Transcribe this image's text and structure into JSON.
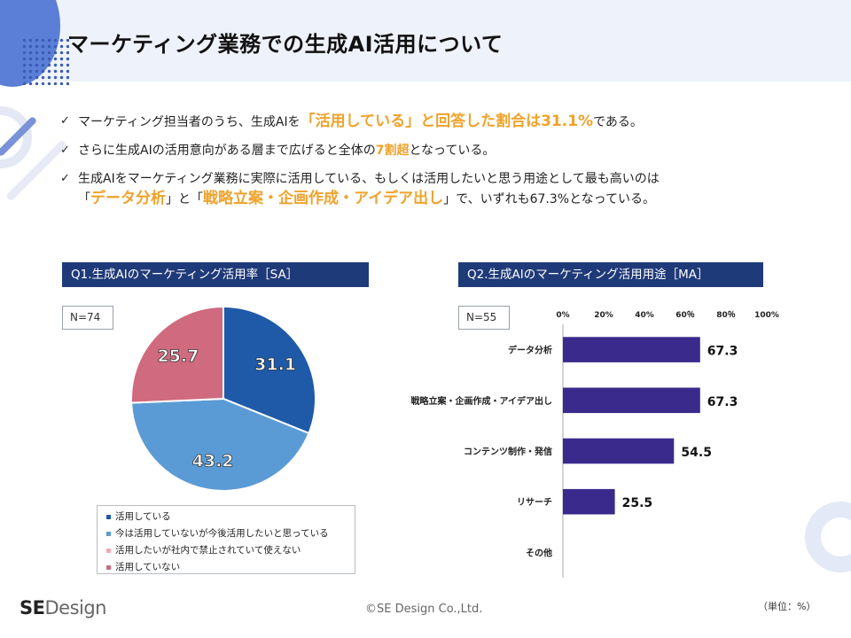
{
  "page": {
    "title": "マーケティング業務での生成AI活用について",
    "bullets": [
      {
        "parts": [
          {
            "text": "マーケティング担当者のうち、生成AIを",
            "style": "plain"
          },
          {
            "text": "「活用している」と回答した割合は31.1%",
            "style": "hl-big"
          },
          {
            "text": "である。",
            "style": "plain"
          }
        ]
      },
      {
        "parts": [
          {
            "text": "さらに生成AIの活用意向がある層まで広げると全体の",
            "style": "plain"
          },
          {
            "text": "7割超",
            "style": "hl"
          },
          {
            "text": "となっている。",
            "style": "plain"
          }
        ]
      },
      {
        "parts": [
          {
            "text": "生成AIをマーケティング業務に実際に活用している、もしくは活用したいと思う用途として最も高いのは",
            "style": "plain"
          },
          {
            "text": "BR",
            "style": "br"
          },
          {
            "text": "「",
            "style": "plain"
          },
          {
            "text": "データ分析",
            "style": "hl-big"
          },
          {
            "text": "」と「",
            "style": "plain"
          },
          {
            "text": "戦略立案・企画作成・アイデア出し",
            "style": "hl-big"
          },
          {
            "text": "」で、いずれも67.3%となっている。",
            "style": "plain"
          }
        ]
      }
    ],
    "footer": {
      "logo_bold": "SE",
      "logo_rest": "Design",
      "copyright": "©SE Design Co.,Ltd.",
      "unit": "（単位：%）"
    }
  },
  "chart_data": [
    {
      "type": "pie",
      "title": "Q1.生成AIのマーケティング活用率［SA］",
      "n_label": "N=74",
      "slices": [
        {
          "label": "活用している",
          "value": 31.1,
          "value_label": "31.1",
          "color": "#1e5aa8"
        },
        {
          "label": "今は活用していないが今後活用したいと思っている",
          "value": 43.2,
          "value_label": "43.2",
          "color": "#5b9bd5"
        },
        {
          "label": "活用したいが社内で禁止されていて使えない",
          "value": 0,
          "value_label": "",
          "color": "#f4a6b4"
        },
        {
          "label": "活用していない",
          "value": 25.7,
          "value_label": "25.7",
          "color": "#d06a7e"
        }
      ],
      "legend_position": "bottom"
    },
    {
      "type": "bar",
      "orientation": "horizontal",
      "title": "Q2.生成AIのマーケティング活用用途［MA］",
      "n_label": "N=55",
      "categories": [
        "データ分析",
        "戦略立案・企画作成・アイデア出し",
        "コンテンツ制作・発信",
        "リサーチ",
        "その他"
      ],
      "values": [
        67.3,
        67.3,
        54.5,
        25.5,
        null
      ],
      "value_labels": [
        "67.3",
        "67.3",
        "54.5",
        "25.5",
        ""
      ],
      "xlim": [
        0,
        100
      ],
      "xticks": [
        "0%",
        "20%",
        "40%",
        "60％",
        "80％",
        "100%"
      ],
      "bar_color": "#3a2a8c"
    }
  ]
}
